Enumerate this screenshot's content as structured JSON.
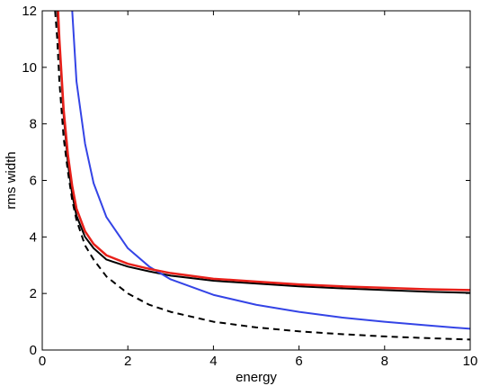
{
  "chart_data": {
    "type": "line",
    "title": "",
    "xlabel": "energy",
    "ylabel": "rms width",
    "xlim": [
      0,
      10
    ],
    "ylim": [
      0,
      12
    ],
    "xticks": [
      0,
      2,
      4,
      6,
      8,
      10
    ],
    "yticks": [
      0,
      2,
      4,
      6,
      8,
      10,
      12
    ],
    "xtick_labels": [
      "0",
      "2",
      "4",
      "6",
      "8",
      "10"
    ],
    "ytick_labels": [
      "0",
      "2",
      "4",
      "6",
      "8",
      "10",
      "12"
    ],
    "grid": false,
    "legend": "none",
    "series": [
      {
        "color": "#000000",
        "style": "dashed",
        "points": [
          [
            0.3,
            12
          ],
          [
            0.35,
            11.0
          ],
          [
            0.4,
            9.5
          ],
          [
            0.5,
            7.5
          ],
          [
            0.6,
            6.3
          ],
          [
            0.7,
            5.3
          ],
          [
            0.8,
            4.6
          ],
          [
            1.0,
            3.7
          ],
          [
            1.2,
            3.2
          ],
          [
            1.5,
            2.6
          ],
          [
            2.0,
            2.0
          ],
          [
            2.5,
            1.6
          ],
          [
            3.0,
            1.35
          ],
          [
            4.0,
            1.0
          ],
          [
            5.0,
            0.8
          ],
          [
            6.0,
            0.66
          ],
          [
            7.0,
            0.56
          ],
          [
            8.0,
            0.48
          ],
          [
            9.0,
            0.42
          ],
          [
            10.0,
            0.37
          ]
        ]
      },
      {
        "color": "#000000",
        "style": "solid",
        "points": [
          [
            0.35,
            12
          ],
          [
            0.4,
            10.8
          ],
          [
            0.5,
            8.3
          ],
          [
            0.6,
            6.6
          ],
          [
            0.7,
            5.5
          ],
          [
            0.8,
            4.75
          ],
          [
            1.0,
            4.0
          ],
          [
            1.2,
            3.6
          ],
          [
            1.5,
            3.2
          ],
          [
            2.0,
            2.95
          ],
          [
            2.5,
            2.78
          ],
          [
            3.0,
            2.63
          ],
          [
            4.0,
            2.45
          ],
          [
            5.0,
            2.35
          ],
          [
            6.0,
            2.25
          ],
          [
            7.0,
            2.18
          ],
          [
            8.0,
            2.12
          ],
          [
            9.0,
            2.06
          ],
          [
            10.0,
            2.02
          ]
        ]
      },
      {
        "color": "#3444e6",
        "style": "solid",
        "points": [
          [
            0.7,
            12
          ],
          [
            0.8,
            9.5
          ],
          [
            1.0,
            7.3
          ],
          [
            1.2,
            5.9
          ],
          [
            1.5,
            4.7
          ],
          [
            2.0,
            3.6
          ],
          [
            2.5,
            2.95
          ],
          [
            3.0,
            2.5
          ],
          [
            4.0,
            1.95
          ],
          [
            5.0,
            1.6
          ],
          [
            6.0,
            1.35
          ],
          [
            7.0,
            1.15
          ],
          [
            8.0,
            1.0
          ],
          [
            9.0,
            0.87
          ],
          [
            10.0,
            0.75
          ]
        ]
      },
      {
        "color": "#e8201a",
        "style": "solid",
        "points": [
          [
            0.37,
            12
          ],
          [
            0.4,
            11.0
          ],
          [
            0.5,
            8.5
          ],
          [
            0.6,
            6.9
          ],
          [
            0.7,
            5.8
          ],
          [
            0.8,
            5.0
          ],
          [
            1.0,
            4.2
          ],
          [
            1.2,
            3.75
          ],
          [
            1.5,
            3.35
          ],
          [
            2.0,
            3.05
          ],
          [
            2.5,
            2.87
          ],
          [
            3.0,
            2.72
          ],
          [
            4.0,
            2.52
          ],
          [
            5.0,
            2.42
          ],
          [
            6.0,
            2.32
          ],
          [
            7.0,
            2.25
          ],
          [
            8.0,
            2.2
          ],
          [
            9.0,
            2.15
          ],
          [
            10.0,
            2.12
          ]
        ]
      }
    ]
  }
}
